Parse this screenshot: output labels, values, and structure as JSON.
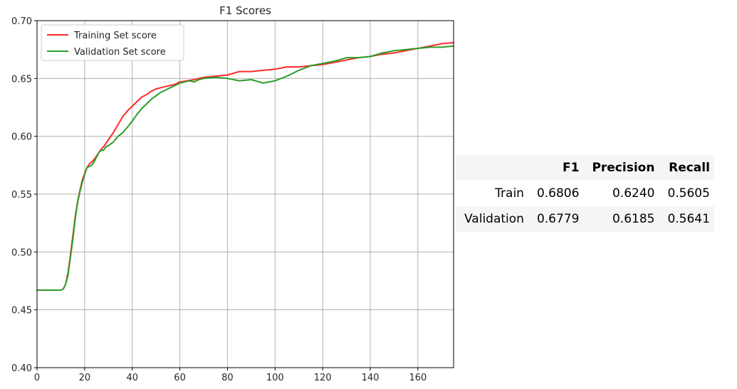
{
  "chart_data": {
    "type": "line",
    "title": "F1 Scores",
    "xlim": [
      0,
      175
    ],
    "ylim": [
      0.4,
      0.7
    ],
    "xticks": [
      0,
      20,
      40,
      60,
      80,
      100,
      120,
      140,
      160
    ],
    "yticks": [
      0.4,
      0.45,
      0.5,
      0.55,
      0.6,
      0.65,
      0.7
    ],
    "xtick_labels": [
      "0",
      "20",
      "40",
      "60",
      "80",
      "100",
      "120",
      "140",
      "160"
    ],
    "ytick_labels": [
      "0.40",
      "0.45",
      "0.50",
      "0.55",
      "0.60",
      "0.65",
      "0.70"
    ],
    "grid": true,
    "legend_position": "top-left",
    "series": [
      {
        "name": "Training Set score",
        "color": "#ff2a2a",
        "x": [
          0,
          5,
          10,
          11,
          12,
          13,
          14,
          15,
          16,
          17,
          18,
          19,
          20,
          21,
          22,
          23,
          24,
          25,
          26,
          27,
          28,
          29,
          30,
          32,
          34,
          36,
          38,
          40,
          42,
          44,
          46,
          48,
          50,
          52,
          54,
          56,
          58,
          60,
          63,
          66,
          70,
          75,
          80,
          85,
          90,
          95,
          100,
          105,
          110,
          115,
          120,
          125,
          130,
          135,
          140,
          145,
          150,
          155,
          160,
          165,
          170,
          175
        ],
        "y": [
          0.467,
          0.467,
          0.467,
          0.468,
          0.472,
          0.482,
          0.497,
          0.513,
          0.53,
          0.543,
          0.553,
          0.562,
          0.568,
          0.573,
          0.576,
          0.578,
          0.58,
          0.583,
          0.586,
          0.589,
          0.591,
          0.594,
          0.597,
          0.603,
          0.61,
          0.617,
          0.622,
          0.626,
          0.63,
          0.634,
          0.636,
          0.639,
          0.641,
          0.642,
          0.643,
          0.644,
          0.645,
          0.647,
          0.648,
          0.649,
          0.651,
          0.652,
          0.653,
          0.656,
          0.656,
          0.657,
          0.658,
          0.66,
          0.66,
          0.661,
          0.662,
          0.664,
          0.666,
          0.668,
          0.669,
          0.671,
          0.672,
          0.674,
          0.676,
          0.678,
          0.68,
          0.681
        ]
      },
      {
        "name": "Validation Set score",
        "color": "#2a9d2a",
        "x": [
          0,
          5,
          10,
          11,
          12,
          13,
          14,
          15,
          16,
          17,
          18,
          19,
          20,
          21,
          22,
          23,
          24,
          25,
          26,
          27,
          28,
          29,
          30,
          32,
          34,
          36,
          38,
          40,
          42,
          44,
          46,
          48,
          50,
          52,
          54,
          56,
          58,
          60,
          62,
          64,
          66,
          68,
          70,
          75,
          80,
          85,
          90,
          95,
          100,
          105,
          110,
          115,
          120,
          125,
          130,
          135,
          140,
          145,
          150,
          155,
          160,
          165,
          170,
          175
        ],
        "y": [
          0.467,
          0.467,
          0.467,
          0.468,
          0.472,
          0.48,
          0.495,
          0.51,
          0.528,
          0.542,
          0.552,
          0.56,
          0.567,
          0.573,
          0.574,
          0.575,
          0.578,
          0.582,
          0.586,
          0.588,
          0.588,
          0.591,
          0.592,
          0.595,
          0.6,
          0.603,
          0.608,
          0.613,
          0.619,
          0.624,
          0.628,
          0.632,
          0.635,
          0.638,
          0.64,
          0.642,
          0.644,
          0.646,
          0.647,
          0.648,
          0.647,
          0.649,
          0.65,
          0.651,
          0.65,
          0.648,
          0.649,
          0.646,
          0.648,
          0.652,
          0.657,
          0.661,
          0.663,
          0.665,
          0.668,
          0.668,
          0.669,
          0.672,
          0.674,
          0.675,
          0.676,
          0.677,
          0.677,
          0.678
        ]
      }
    ]
  },
  "table": {
    "columns": [
      "",
      "F1",
      "Precision",
      "Recall"
    ],
    "rows": [
      {
        "label": "Train",
        "f1": "0.6806",
        "precision": "0.6240",
        "recall": "0.5605"
      },
      {
        "label": "Validation",
        "f1": "0.6779",
        "precision": "0.6185",
        "recall": "0.5641"
      }
    ]
  }
}
